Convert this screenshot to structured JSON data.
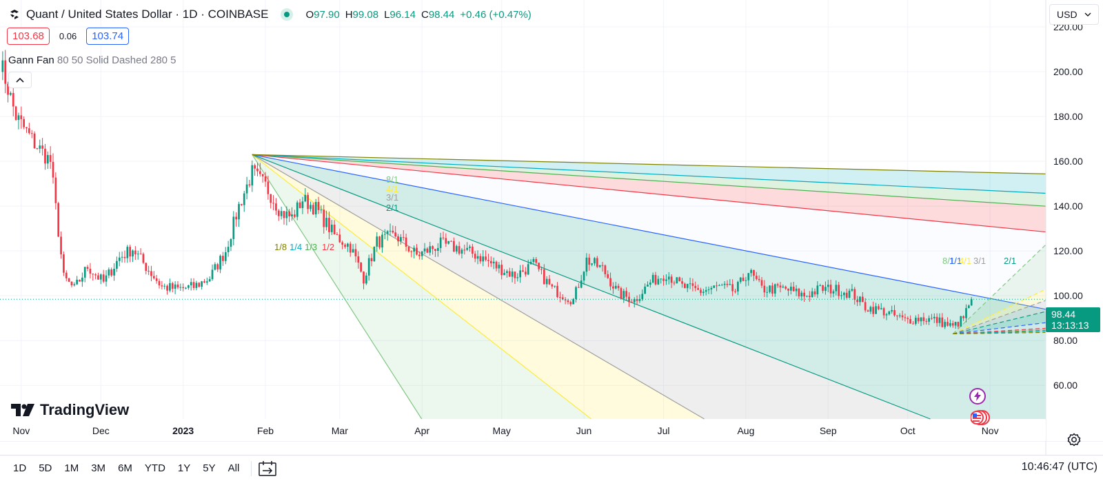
{
  "header": {
    "title": "Quant / United States Dollar · 1D · COINBASE",
    "ohlc": {
      "o_label": "O",
      "o": "97.90",
      "h_label": "H",
      "h": "99.08",
      "l_label": "L",
      "l": "96.14",
      "c_label": "C",
      "c": "98.44",
      "change": "+0.46 (+0.47%)"
    }
  },
  "trade": {
    "sell": "103.68",
    "spread": "0.06",
    "buy": "103.74"
  },
  "indicator": {
    "name": "Gann Fan",
    "params": "80 50 Solid Dashed 280 5"
  },
  "currency": "USD",
  "last_price": {
    "value": "98.44",
    "countdown": "13:13:13"
  },
  "brand": "TradingView",
  "ranges": [
    "1D",
    "5D",
    "1M",
    "3M",
    "6M",
    "YTD",
    "1Y",
    "5Y",
    "All"
  ],
  "clock": "10:46:47 (UTC)",
  "colors": {
    "up": "#089981",
    "down": "#f23645",
    "accent": "#2962ff"
  },
  "icons": [
    "coin-icon",
    "live-dot-icon",
    "chevron-up-icon",
    "chevron-down-icon",
    "lightning-icon",
    "us-flag-icon",
    "compare-calendar-icon",
    "gear-icon"
  ],
  "chart_data": {
    "type": "candlestick",
    "title": "",
    "xlabel": "",
    "ylabel": "",
    "ylim": [
      45,
      232
    ],
    "y_ticks": [
      "220.00",
      "200.00",
      "180.00",
      "160.00",
      "140.00",
      "120.00",
      "100.00",
      "80.00",
      "60.00"
    ],
    "y_tick_values": [
      220,
      200,
      180,
      160,
      140,
      120,
      100,
      80,
      60
    ],
    "x_ticks": [
      "Nov",
      "Dec",
      "2023",
      "Feb",
      "Mar",
      "Apr",
      "May",
      "Jun",
      "Jul",
      "Aug",
      "Sep",
      "Oct",
      "Nov"
    ],
    "x_tick_dates": [
      "2022-11-01",
      "2022-12-01",
      "2023-01-01",
      "2023-02-01",
      "2023-03-01",
      "2023-04-01",
      "2023-05-01",
      "2023-06-01",
      "2023-07-01",
      "2023-08-01",
      "2023-09-01",
      "2023-10-01",
      "2023-11-01"
    ],
    "x_range": [
      "2022-10-24",
      "2023-11-22"
    ],
    "current_price": 98.44,
    "anchors": [
      [
        "2022-10-24",
        205
      ],
      [
        "2022-10-30",
        180
      ],
      [
        "2022-11-06",
        168
      ],
      [
        "2022-11-12",
        160
      ],
      [
        "2022-11-17",
        108
      ],
      [
        "2022-11-21",
        103
      ],
      [
        "2022-11-26",
        113
      ],
      [
        "2022-12-02",
        106
      ],
      [
        "2022-12-08",
        117
      ],
      [
        "2022-12-13",
        121
      ],
      [
        "2022-12-18",
        113
      ],
      [
        "2022-12-24",
        104
      ],
      [
        "2022-12-30",
        103
      ],
      [
        "2023-01-05",
        104
      ],
      [
        "2023-01-11",
        108
      ],
      [
        "2023-01-17",
        120
      ],
      [
        "2023-01-22",
        140
      ],
      [
        "2023-01-27",
        155
      ],
      [
        "2023-02-01",
        149
      ],
      [
        "2023-02-07",
        137
      ],
      [
        "2023-02-11",
        135
      ],
      [
        "2023-02-15",
        143
      ],
      [
        "2023-02-20",
        139
      ],
      [
        "2023-02-27",
        127
      ],
      [
        "2023-03-05",
        122
      ],
      [
        "2023-03-10",
        108
      ],
      [
        "2023-03-15",
        124
      ],
      [
        "2023-03-22",
        127
      ],
      [
        "2023-03-30",
        118
      ],
      [
        "2023-04-08",
        123
      ],
      [
        "2023-04-15",
        121
      ],
      [
        "2023-04-22",
        118
      ],
      [
        "2023-04-29",
        113
      ],
      [
        "2023-05-06",
        109
      ],
      [
        "2023-05-13",
        114
      ],
      [
        "2023-05-20",
        103
      ],
      [
        "2023-05-28",
        98
      ],
      [
        "2023-06-02",
        116
      ],
      [
        "2023-06-08",
        112
      ],
      [
        "2023-06-14",
        101
      ],
      [
        "2023-06-20",
        98
      ],
      [
        "2023-06-26",
        106
      ],
      [
        "2023-07-02",
        110
      ],
      [
        "2023-07-08",
        104
      ],
      [
        "2023-07-15",
        102
      ],
      [
        "2023-07-22",
        104
      ],
      [
        "2023-07-28",
        102
      ],
      [
        "2023-08-02",
        111
      ],
      [
        "2023-08-07",
        103
      ],
      [
        "2023-08-16",
        103
      ],
      [
        "2023-08-23",
        100
      ],
      [
        "2023-08-29",
        103
      ],
      [
        "2023-09-03",
        103
      ],
      [
        "2023-09-10",
        101
      ],
      [
        "2023-09-15",
        95
      ],
      [
        "2023-09-22",
        93
      ],
      [
        "2023-09-30",
        89
      ],
      [
        "2023-10-06",
        90
      ],
      [
        "2023-10-12",
        89
      ],
      [
        "2023-10-18",
        86
      ],
      [
        "2023-10-22",
        90
      ],
      [
        "2023-10-24",
        96
      ],
      [
        "2023-10-25",
        98.44
      ]
    ],
    "gann_fans": [
      {
        "origin": [
          "2023-01-27",
          163
        ],
        "levels": [
          "8/1",
          "4/1",
          "3/1",
          "2/1",
          "1/1",
          "1/2",
          "1/3",
          "1/4",
          "1/8"
        ]
      },
      {
        "origin": [
          "2023-10-18",
          83
        ],
        "levels": [
          "8/1",
          "4/1",
          "3/1",
          "2/1",
          "1/1",
          "1/2",
          "1/3",
          "1/4",
          "1/8"
        ]
      }
    ]
  }
}
